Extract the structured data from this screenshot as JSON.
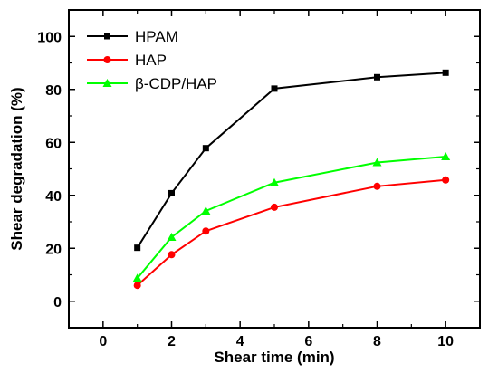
{
  "chart_data": {
    "type": "line",
    "xlabel": "Shear time (min)",
    "ylabel": "Shear degradation (%)",
    "xlim": [
      -1,
      11
    ],
    "ylim": [
      -10,
      110
    ],
    "xticks": [
      0,
      2,
      4,
      6,
      8,
      10
    ],
    "yticks": [
      0,
      20,
      40,
      60,
      80,
      100
    ],
    "legend_position": "top-left",
    "grid": false,
    "x": [
      1,
      2,
      3,
      5,
      8,
      10
    ],
    "series": [
      {
        "name": "HPAM",
        "color": "#000000",
        "marker": "square",
        "values": [
          20.2,
          40.8,
          57.8,
          80.3,
          84.6,
          86.3
        ]
      },
      {
        "name": "HAP",
        "color": "#ff0000",
        "marker": "circle",
        "values": [
          6.0,
          17.6,
          26.5,
          35.5,
          43.4,
          45.8
        ]
      },
      {
        "name": "β-CDP/HAP",
        "color": "#00ff00",
        "marker": "triangle",
        "values": [
          8.7,
          24.2,
          34.1,
          44.8,
          52.4,
          54.6
        ]
      }
    ]
  }
}
